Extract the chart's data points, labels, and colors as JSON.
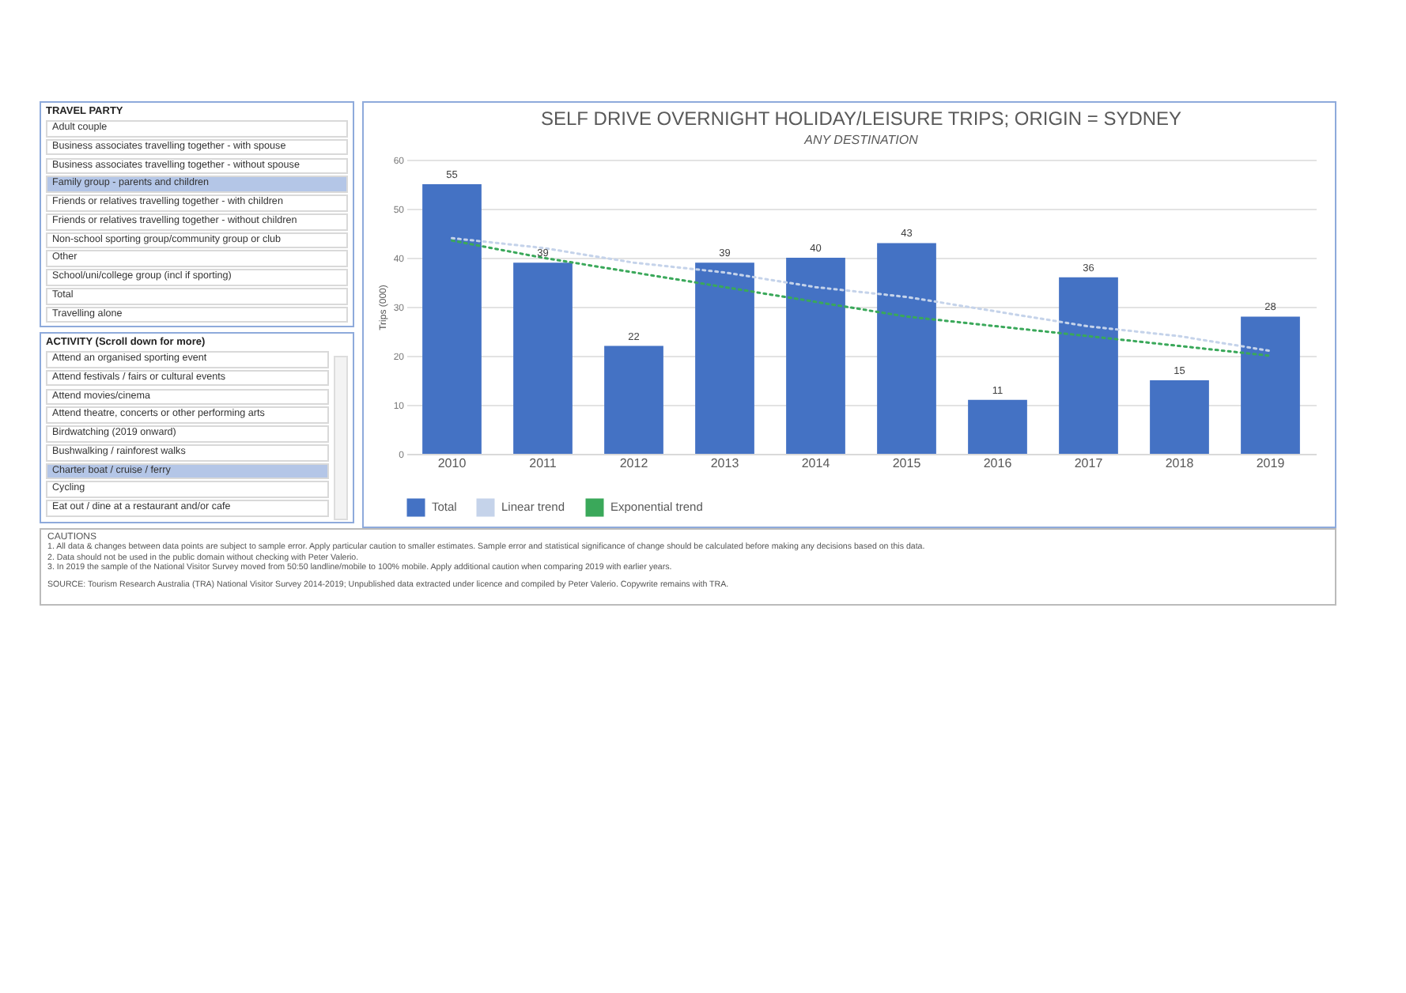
{
  "chart_data": [
    {
      "type": "bar",
      "title": "SELF DRIVE OVERNIGHT HOLIDAY/LEISURE TRIPS; ORIGIN = SYDNEY",
      "subtitle": "ANY DESTINATION",
      "ylabel": "Trips (000)",
      "categories": [
        "2010",
        "2011",
        "2012",
        "2013",
        "2014",
        "2015",
        "2016",
        "2017",
        "2018",
        "2019"
      ],
      "series": [
        {
          "name": "Total",
          "type": "bar",
          "color": "#4472c4",
          "values": [
            55,
            39,
            22,
            39,
            40,
            43,
            11,
            36,
            15,
            28
          ],
          "value_labels": [
            "55",
            "39",
            "22",
            "39",
            "40",
            "43",
            "11",
            "36",
            "15",
            "28"
          ]
        },
        {
          "name": "Linear trend",
          "type": "line",
          "color": "#c5d3ea",
          "line_style": "dotted",
          "values": [
            44,
            42,
            39,
            37,
            34,
            32,
            29,
            26,
            24,
            21
          ]
        },
        {
          "name": "Exponential trend",
          "type": "line",
          "color": "#3aa85a",
          "line_style": "dotted",
          "values": [
            43.5,
            40,
            37,
            34,
            31,
            28,
            26,
            24,
            22,
            20
          ]
        }
      ],
      "ylim": [
        0,
        60
      ],
      "yticks": [
        0,
        10,
        20,
        30,
        40,
        50,
        60
      ],
      "grid": "y",
      "legend": "bottom",
      "annotations": [
        "CAUTIONS",
        "1. All data & changes between data points are subject to sample error. Apply particular caution to smaller estimates. Sample error and statistical significance of change should be calculated before making any decisions based on this data.",
        "2. Data should not be used in the public domain without checking with Peter Valerio.",
        "3. In 2019 the sample of the National Visitor Survey moved from 50:50 landline/mobile to 100% mobile. Apply additional caution when comparing 2019 with earlier years.",
        "SOURCE: Tourism Research Australia (TRA) National Visitor Survey 2014-2019; Unpublished data extracted under licence and compiled by Peter Valerio. Copywrite remains with TRA."
      ]
    },
    {
      "type": "other",
      "title": "TRAVEL PARTY",
      "categories": [
        "Adult couple",
        "Business associates travelling together - with spouse",
        "Business associates travelling together - without spouse",
        "Family group - parents and children",
        "Friends or relatives travelling together - with children",
        "Friends or relatives travelling together - without children",
        "Non-school sporting group/community group or club",
        "Other",
        "School/uni/college group (incl if sporting)",
        "Total",
        "Travelling alone"
      ],
      "colors": [
        "#ffffff",
        "#ffffff",
        "#ffffff",
        "#b4c6e7",
        "#ffffff",
        "#ffffff",
        "#ffffff",
        "#ffffff",
        "#ffffff",
        "#ffffff",
        "#ffffff"
      ]
    },
    {
      "type": "other",
      "title": "ACTIVITY (Scroll down for more)",
      "categories": [
        "Attend an organised sporting event",
        "Attend festivals / fairs or cultural events",
        "Attend movies/cinema",
        "Attend theatre, concerts or other performing arts",
        "Birdwatching (2019 onward)",
        "Bushwalking / rainforest walks",
        "Charter boat / cruise / ferry",
        "Cycling",
        "Eat out / dine at a restaurant and/or cafe"
      ],
      "colors": [
        "#ffffff",
        "#ffffff",
        "#ffffff",
        "#ffffff",
        "#ffffff",
        "#ffffff",
        "#b4c6e7",
        "#ffffff",
        "#ffffff"
      ]
    }
  ]
}
